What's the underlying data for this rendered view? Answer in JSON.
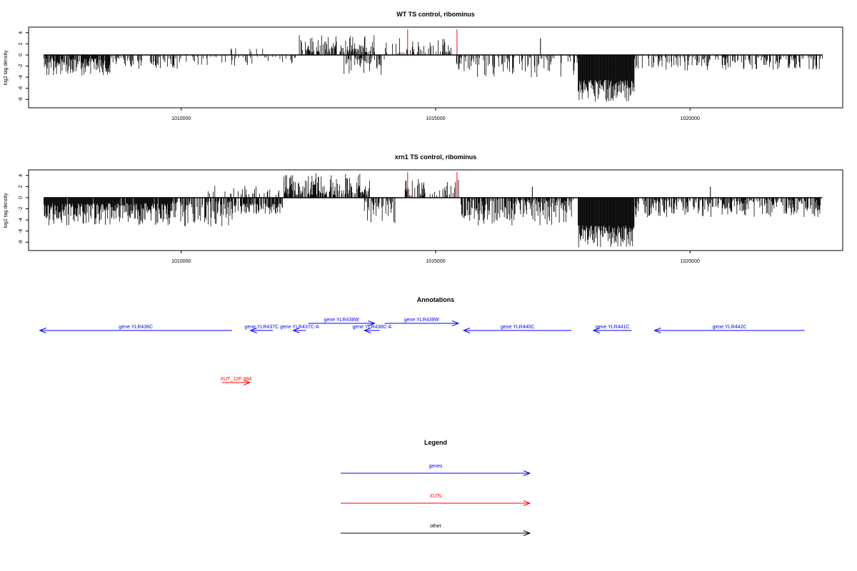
{
  "chart_data": [
    {
      "type": "bar",
      "title": "WT TS control, ribominus",
      "ylabel": "log2 tag density",
      "xlim": [
        1007000,
        1023000
      ],
      "ylim": [
        -9.5,
        5
      ],
      "x_ticks": [
        1010000,
        1015000,
        1020000
      ],
      "x_tick_labels": [
        "1010000",
        "1015000",
        "1020000"
      ],
      "y_ticks": [
        4,
        2,
        0,
        -2,
        -4,
        -6,
        -8
      ],
      "y_tick_labels": [
        "4",
        "2",
        "0",
        "-2",
        "-4",
        "-6",
        "-8"
      ],
      "data_range": [
        1007300,
        1022600
      ],
      "red_markers": [
        1014450,
        1015420
      ],
      "red_marker_value": 4.6,
      "regions": [
        {
          "from": 1007300,
          "to": 1008600,
          "sign": -1,
          "min": 0.6,
          "max": 3.8,
          "density": 0.8
        },
        {
          "from": 1008600,
          "to": 1010000,
          "sign": -1,
          "min": 0.4,
          "max": 2.5,
          "density": 0.35
        },
        {
          "from": 1010000,
          "to": 1012300,
          "sign": -1,
          "min": 0.3,
          "max": 2.2,
          "density": 0.25
        },
        {
          "from": 1010900,
          "to": 1011700,
          "sign": 1,
          "min": 0.5,
          "max": 1.8,
          "density": 0.1
        },
        {
          "from": 1012300,
          "to": 1013800,
          "sign": 1,
          "min": 0.5,
          "max": 3.6,
          "density": 0.55
        },
        {
          "from": 1013200,
          "to": 1014000,
          "sign": -1,
          "min": 0.5,
          "max": 3.6,
          "density": 0.35
        },
        {
          "from": 1014000,
          "to": 1015300,
          "sign": 1,
          "min": 0.4,
          "max": 3.0,
          "density": 0.35
        },
        {
          "from": 1015400,
          "to": 1017800,
          "sign": -1,
          "min": 0.4,
          "max": 4.0,
          "density": 0.35
        },
        {
          "from": 1017800,
          "to": 1018900,
          "sign": -1,
          "min": 4.5,
          "max": 8.5,
          "density": 1.0
        },
        {
          "from": 1018900,
          "to": 1022600,
          "sign": -1,
          "min": 0.3,
          "max": 2.8,
          "density": 0.4
        }
      ],
      "spikes": [
        {
          "x": 1017060,
          "value": 3.0
        }
      ]
    },
    {
      "type": "bar",
      "title": "xrn1 TS control, ribominus",
      "ylabel": "log2 tag density",
      "xlim": [
        1007000,
        1023000
      ],
      "ylim": [
        -9.5,
        5
      ],
      "x_ticks": [
        1010000,
        1015000,
        1020000
      ],
      "x_tick_labels": [
        "1010000",
        "1015000",
        "1020000"
      ],
      "y_ticks": [
        4,
        2,
        0,
        -2,
        -4,
        -6,
        -8
      ],
      "y_tick_labels": [
        "4",
        "2",
        "0",
        "-2",
        "-4",
        "-6",
        "-8"
      ],
      "data_range": [
        1007300,
        1022600
      ],
      "red_markers": [
        1014450,
        1015420
      ],
      "red_marker_value": 4.6,
      "regions": [
        {
          "from": 1007300,
          "to": 1009800,
          "sign": -1,
          "min": 1.0,
          "max": 5.0,
          "density": 0.95
        },
        {
          "from": 1009800,
          "to": 1011000,
          "sign": -1,
          "min": 0.6,
          "max": 5.2,
          "density": 0.6
        },
        {
          "from": 1010500,
          "to": 1012000,
          "sign": 1,
          "min": 0.5,
          "max": 2.2,
          "density": 0.2
        },
        {
          "from": 1011000,
          "to": 1012000,
          "sign": -1,
          "min": 1.0,
          "max": 3.0,
          "density": 0.7
        },
        {
          "from": 1012000,
          "to": 1013700,
          "sign": 1,
          "min": 0.5,
          "max": 4.5,
          "density": 0.7
        },
        {
          "from": 1013600,
          "to": 1014200,
          "sign": -1,
          "min": 0.5,
          "max": 4.8,
          "density": 0.6
        },
        {
          "from": 1014400,
          "to": 1015500,
          "sign": 1,
          "min": 0.4,
          "max": 3.5,
          "density": 0.35
        },
        {
          "from": 1015500,
          "to": 1017700,
          "sign": -1,
          "min": 0.4,
          "max": 5.0,
          "density": 0.75
        },
        {
          "from": 1017800,
          "to": 1018900,
          "sign": -1,
          "min": 5.0,
          "max": 9.0,
          "density": 1.0
        },
        {
          "from": 1018900,
          "to": 1022600,
          "sign": -1,
          "min": 0.4,
          "max": 3.5,
          "density": 0.6
        }
      ],
      "spikes": [
        {
          "x": 1016900,
          "value": 2.0
        },
        {
          "x": 1020400,
          "value": 2.0
        }
      ]
    },
    {
      "type": "diagram",
      "title": "Annotations",
      "xlim": [
        1007000,
        1023000
      ],
      "colors": {
        "genes": "#0000ff",
        "XUTs": "#ff0000",
        "other": "#000000"
      },
      "features": [
        {
          "label": "gene YLR436C",
          "from": 1007220,
          "to": 1011000,
          "strand": "-",
          "kind": "genes",
          "row": 1
        },
        {
          "label": "gene YLR437C",
          "from": 1011360,
          "to": 1011800,
          "strand": "-",
          "kind": "genes",
          "row": 1
        },
        {
          "label": "gene YLR437C-A",
          "from": 1012200,
          "to": 1012450,
          "strand": "-",
          "kind": "genes",
          "row": 1
        },
        {
          "label": "gene YLR438W",
          "from": 1012500,
          "to": 1013800,
          "strand": "+",
          "kind": "genes",
          "row": 0
        },
        {
          "label": "gene YLR438C-A",
          "from": 1013600,
          "to": 1013900,
          "strand": "-",
          "kind": "genes",
          "row": 1
        },
        {
          "label": "gene YLR439W",
          "from": 1014000,
          "to": 1015450,
          "strand": "+",
          "kind": "genes",
          "row": 0
        },
        {
          "label": "gene YLR440C",
          "from": 1015550,
          "to": 1017670,
          "strand": "-",
          "kind": "genes",
          "row": 1
        },
        {
          "label": "gene YLR441C",
          "from": 1018100,
          "to": 1018850,
          "strand": "-",
          "kind": "genes",
          "row": 1
        },
        {
          "label": "gene YLR442C",
          "from": 1019300,
          "to": 1022250,
          "strand": "-",
          "kind": "genes",
          "row": 1
        },
        {
          "label": "XUT_12F-394",
          "from": 1010800,
          "to": 1011350,
          "strand": "+",
          "kind": "XUTs",
          "row": 2
        }
      ]
    },
    {
      "type": "legend",
      "title": "Legend",
      "entries": [
        {
          "label": "genes",
          "color": "#0000ff"
        },
        {
          "label": "XUTs",
          "color": "#ff0000"
        },
        {
          "label": "other",
          "color": "#000000"
        }
      ]
    }
  ]
}
